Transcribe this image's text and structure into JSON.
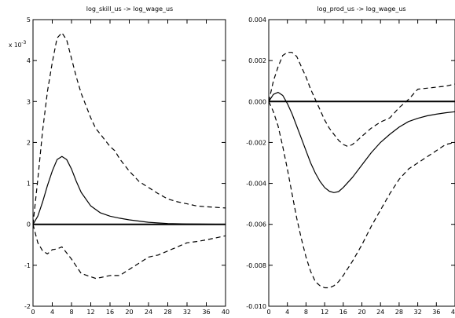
{
  "chart_data": [
    {
      "type": "line",
      "title": "log_skill_us -> log_wage_us",
      "y_multiplier_label": "x 10",
      "y_multiplier_exp": "-3",
      "xlim": [
        0,
        40
      ],
      "ylim": [
        -2,
        5
      ],
      "xticks": [
        0,
        4,
        8,
        12,
        16,
        20,
        24,
        28,
        32,
        36,
        40
      ],
      "yticks": [
        -2,
        -1,
        0,
        1,
        2,
        3,
        4,
        5
      ],
      "ytick_labels": [
        "-2",
        "-1",
        "0",
        "1",
        "2",
        "3",
        "4",
        "5"
      ],
      "zero_line": true,
      "grid": false,
      "series": [
        {
          "style": "solid",
          "x": [
            0,
            1,
            2,
            3,
            4,
            5,
            6,
            7,
            8,
            9,
            10,
            12,
            14,
            16,
            18,
            20,
            24,
            28,
            32,
            36,
            40
          ],
          "y": [
            0,
            0.2,
            0.55,
            0.95,
            1.3,
            1.58,
            1.66,
            1.58,
            1.35,
            1.05,
            0.78,
            0.45,
            0.28,
            0.2,
            0.15,
            0.11,
            0.05,
            0.02,
            0.01,
            0.005,
            0.0
          ]
        },
        {
          "style": "dashed",
          "x": [
            0,
            1,
            2,
            3,
            4,
            5,
            6,
            7,
            8,
            9,
            10,
            11,
            12,
            13,
            14,
            15,
            16,
            17,
            18,
            20,
            22,
            24,
            26,
            28,
            30,
            32,
            34,
            36,
            40
          ],
          "y": [
            0,
            1.1,
            2.3,
            3.25,
            3.95,
            4.55,
            4.68,
            4.5,
            4.05,
            3.6,
            3.2,
            2.9,
            2.6,
            2.35,
            2.2,
            2.05,
            1.9,
            1.8,
            1.6,
            1.3,
            1.05,
            0.9,
            0.75,
            0.62,
            0.55,
            0.5,
            0.45,
            0.43,
            0.4
          ]
        },
        {
          "style": "dashed",
          "x": [
            0,
            1,
            2,
            3,
            4,
            5,
            6,
            8,
            10,
            12,
            13,
            14,
            16,
            18,
            20,
            22,
            24,
            26,
            28,
            30,
            32,
            34,
            36,
            38,
            40
          ],
          "y": [
            0,
            -0.45,
            -0.65,
            -0.72,
            -0.62,
            -0.6,
            -0.55,
            -0.85,
            -1.2,
            -1.28,
            -1.32,
            -1.3,
            -1.25,
            -1.25,
            -1.1,
            -0.95,
            -0.8,
            -0.75,
            -0.65,
            -0.55,
            -0.45,
            -0.42,
            -0.38,
            -0.33,
            -0.28
          ]
        }
      ]
    },
    {
      "type": "line",
      "title": "log_prod_us -> log_wage_us",
      "xlim": [
        0,
        40
      ],
      "ylim": [
        -0.01,
        0.004
      ],
      "xticks": [
        0,
        4,
        8,
        12,
        16,
        20,
        24,
        28,
        32,
        36,
        40
      ],
      "yticks": [
        -0.01,
        -0.008,
        -0.006,
        -0.004,
        -0.002,
        0,
        0.002,
        0.004
      ],
      "ytick_labels": [
        "-0.010",
        "-0.008",
        "-0.006",
        "-0.004",
        "-0.002",
        "0.000",
        "0.002",
        "0.004"
      ],
      "zero_line": true,
      "grid": false,
      "series": [
        {
          "style": "solid",
          "x": [
            0,
            1,
            2,
            3,
            4,
            5,
            6,
            7,
            8,
            9,
            10,
            11,
            12,
            13,
            14,
            15,
            16,
            18,
            20,
            22,
            24,
            26,
            28,
            30,
            32,
            34,
            36,
            38,
            40
          ],
          "y": [
            0,
            0.00035,
            0.00045,
            0.0003,
            -0.0001,
            -0.0006,
            -0.0012,
            -0.0018,
            -0.0024,
            -0.003,
            -0.0035,
            -0.0039,
            -0.0042,
            -0.00438,
            -0.00445,
            -0.0044,
            -0.0042,
            -0.0037,
            -0.0031,
            -0.0025,
            -0.002,
            -0.0016,
            -0.00125,
            -0.00098,
            -0.00082,
            -0.0007,
            -0.00062,
            -0.00055,
            -0.0005
          ]
        },
        {
          "style": "dashed",
          "x": [
            0,
            1,
            2,
            3,
            4,
            5,
            6,
            7,
            8,
            9,
            10,
            11,
            12,
            13,
            14,
            15,
            16,
            17,
            18,
            19,
            20,
            22,
            24,
            26,
            28,
            30,
            32,
            34,
            36,
            38,
            40
          ],
          "y": [
            0,
            0.001,
            0.0017,
            0.00225,
            0.0024,
            0.0024,
            0.0022,
            0.0017,
            0.0012,
            0.0006,
            0.0001,
            -0.0004,
            -0.0009,
            -0.0013,
            -0.0016,
            -0.0019,
            -0.0021,
            -0.0022,
            -0.0021,
            -0.0019,
            -0.0017,
            -0.0013,
            -0.001,
            -0.0008,
            -0.0003,
            0.0001,
            0.0006,
            0.00065,
            0.0007,
            0.00075,
            0.00085
          ]
        },
        {
          "style": "dashed",
          "x": [
            0,
            1,
            2,
            3,
            4,
            5,
            6,
            7,
            8,
            9,
            10,
            11,
            12,
            13,
            14,
            15,
            16,
            18,
            20,
            22,
            24,
            26,
            28,
            30,
            32,
            34,
            36,
            38,
            40
          ],
          "y": [
            0,
            -0.0005,
            -0.0012,
            -0.0022,
            -0.0033,
            -0.0045,
            -0.0057,
            -0.0067,
            -0.0076,
            -0.0083,
            -0.0088,
            -0.009,
            -0.0091,
            -0.0091,
            -0.009,
            -0.0088,
            -0.0085,
            -0.0078,
            -0.007,
            -0.0061,
            -0.0053,
            -0.0045,
            -0.0038,
            -0.0033,
            -0.003,
            -0.0027,
            -0.0024,
            -0.0021,
            -0.002
          ]
        }
      ]
    }
  ]
}
